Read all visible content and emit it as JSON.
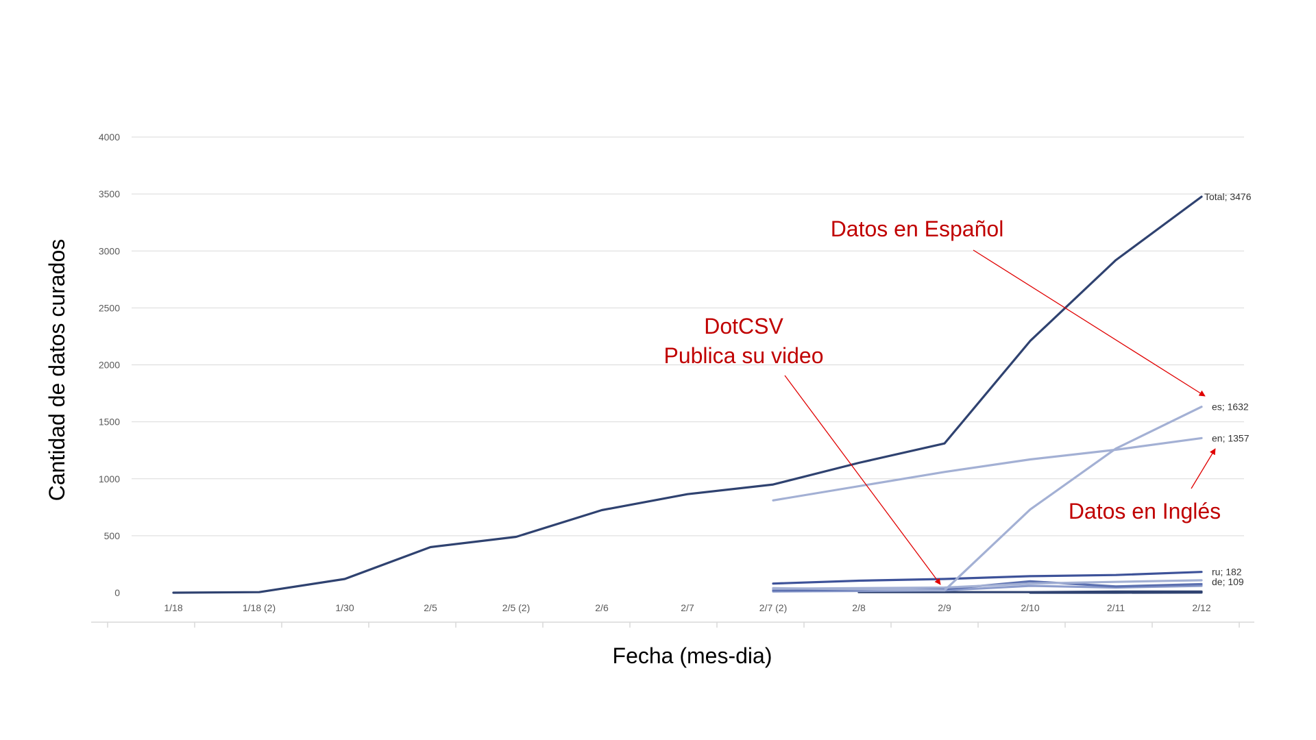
{
  "chart_data": {
    "type": "line",
    "xlabel": "Fecha (mes-dia)",
    "ylabel": "Cantidad de datos curados",
    "ylim": [
      0,
      4000
    ],
    "yticks": [
      "0",
      "500",
      "1000",
      "1500",
      "2000",
      "2500",
      "3000",
      "3500",
      "4000"
    ],
    "categories": [
      "1/18",
      "1/18 (2)",
      "1/30",
      "2/5",
      "2/5 (2)",
      "2/6",
      "2/7",
      "2/7 (2)",
      "2/8",
      "2/9",
      "2/10",
      "2/11",
      "2/12"
    ],
    "grid": true,
    "series": [
      {
        "name": "Total",
        "end_label": "Total; 3476",
        "color": "#2f4270",
        "emphasis": "dark",
        "values": [
          0,
          5,
          120,
          400,
          490,
          725,
          865,
          950,
          1140,
          1310,
          2210,
          2920,
          3476
        ]
      },
      {
        "name": "es",
        "end_label": "es; 1632",
        "color": "#a3b0d4",
        "emphasis": "light",
        "values": [
          null,
          null,
          null,
          null,
          null,
          null,
          null,
          40,
          30,
          20,
          730,
          1265,
          1632
        ]
      },
      {
        "name": "en",
        "end_label": "en; 1357",
        "color": "#a3b0d4",
        "emphasis": "light",
        "values": [
          null,
          null,
          null,
          null,
          null,
          null,
          null,
          810,
          null,
          1060,
          1170,
          1255,
          1357
        ]
      },
      {
        "name": "ru",
        "end_label": "ru; 182",
        "color": "#3d5299",
        "emphasis": "medium",
        "values": [
          null,
          null,
          null,
          null,
          null,
          null,
          null,
          80,
          105,
          120,
          145,
          155,
          182
        ]
      },
      {
        "name": "de",
        "end_label": "de; 109",
        "color": "#a3b0d4",
        "emphasis": "light",
        "values": [
          null,
          null,
          null,
          null,
          null,
          null,
          null,
          35,
          40,
          45,
          80,
          95,
          109
        ]
      },
      {
        "name": "",
        "end_label": "",
        "color": "#5c70b0",
        "emphasis": "medium",
        "values": [
          null,
          null,
          null,
          null,
          null,
          null,
          null,
          20,
          25,
          30,
          100,
          55,
          75
        ]
      },
      {
        "name": "",
        "end_label": "",
        "color": "#8c9ccc",
        "emphasis": "light",
        "values": [
          null,
          null,
          null,
          null,
          null,
          null,
          null,
          10,
          15,
          20,
          60,
          45,
          60
        ]
      },
      {
        "name": "",
        "end_label": "",
        "color": "#2f4270",
        "emphasis": "dark",
        "values": [
          null,
          null,
          null,
          null,
          null,
          null,
          null,
          null,
          5,
          5,
          5,
          10,
          10
        ]
      },
      {
        "name": "",
        "end_label": "",
        "color": "#2f4270",
        "emphasis": "dark",
        "values": [
          null,
          null,
          null,
          null,
          null,
          null,
          null,
          null,
          null,
          null,
          0,
          0,
          1
        ]
      }
    ],
    "annotations": [
      {
        "lines": [
          "Datos en Español"
        ],
        "points_to": "es"
      },
      {
        "lines": [
          "DotCSV",
          "Publica su video"
        ],
        "points_to": "2/9"
      },
      {
        "lines": [
          "Datos en Inglés"
        ],
        "points_to": "en"
      }
    ]
  }
}
